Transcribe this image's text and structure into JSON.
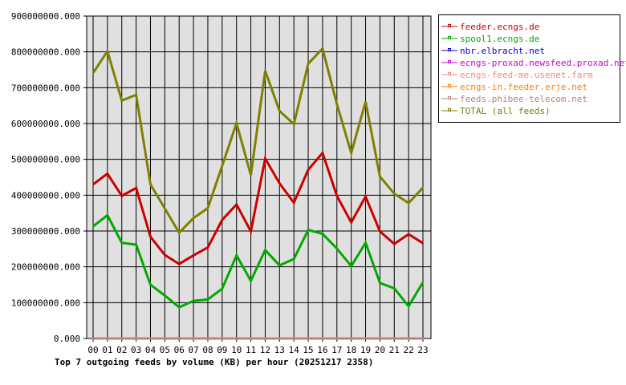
{
  "chart_data": {
    "type": "line",
    "title": "Top 7 outgoing feeds by volume (KB) per hour (20251217 2358)",
    "categories": [
      "00",
      "01",
      "02",
      "03",
      "04",
      "05",
      "06",
      "07",
      "08",
      "09",
      "10",
      "11",
      "12",
      "13",
      "14",
      "15",
      "16",
      "17",
      "18",
      "19",
      "20",
      "21",
      "22",
      "23"
    ],
    "ylim": [
      0,
      900000000
    ],
    "yticks": [
      "0.000",
      "100000000.000",
      "200000000.000",
      "300000000.000",
      "400000000.000",
      "500000000.000",
      "600000000.000",
      "700000000.000",
      "800000000.000",
      "900000000.000"
    ],
    "grid": true,
    "legend_position": "right",
    "series": [
      {
        "name": "feeder.ecngs.de",
        "color": "#cc0000",
        "values": [
          430000000,
          460000000,
          398000000,
          420000000,
          284000000,
          233000000,
          208000000,
          232000000,
          254000000,
          331000000,
          374000000,
          299000000,
          502000000,
          433000000,
          379000000,
          471000000,
          518000000,
          398000000,
          324000000,
          396000000,
          299000000,
          264000000,
          291000000,
          266000000
        ]
      },
      {
        "name": "spool1.ecngs.de",
        "color": "#00aa00",
        "values": [
          313000000,
          344000000,
          267000000,
          262000000,
          150000000,
          120000000,
          87000000,
          105000000,
          109000000,
          139000000,
          232000000,
          161000000,
          247000000,
          204000000,
          222000000,
          303000000,
          292000000,
          251000000,
          202000000,
          267000000,
          155000000,
          140000000,
          90000000,
          157000000
        ]
      },
      {
        "name": "nbr.elbracht.net",
        "color": "#0000cc",
        "values": [
          0,
          0,
          0,
          0,
          0,
          0,
          0,
          0,
          0,
          0,
          0,
          0,
          0,
          0,
          0,
          0,
          0,
          0,
          0,
          0,
          0,
          0,
          0,
          0
        ]
      },
      {
        "name": "ecngs-proxad.newsfeed.proxad.net",
        "color": "#cc00cc",
        "values": [
          0,
          0,
          0,
          0,
          0,
          0,
          0,
          0,
          0,
          0,
          0,
          0,
          0,
          0,
          0,
          0,
          0,
          0,
          0,
          0,
          0,
          0,
          0,
          0
        ]
      },
      {
        "name": "ecngs-feed-me.usenet.farm",
        "color": "#ff8080",
        "values": [
          0,
          0,
          0,
          0,
          0,
          0,
          0,
          0,
          0,
          0,
          0,
          0,
          0,
          0,
          0,
          0,
          0,
          0,
          0,
          0,
          0,
          0,
          0,
          0
        ]
      },
      {
        "name": "ecngs-in.feeder.erje.net",
        "color": "#ff8000",
        "values": [
          0,
          0,
          0,
          0,
          0,
          0,
          0,
          0,
          0,
          0,
          0,
          0,
          0,
          0,
          0,
          0,
          0,
          0,
          0,
          0,
          0,
          0,
          0,
          0
        ]
      },
      {
        "name": "feeds.phibee-telecom.net",
        "color": "#c08080",
        "values": [
          0,
          0,
          0,
          0,
          0,
          0,
          0,
          0,
          0,
          0,
          0,
          0,
          0,
          0,
          0,
          0,
          0,
          0,
          0,
          0,
          0,
          0,
          0,
          0
        ]
      },
      {
        "name": "TOTAL (all feeds)",
        "color": "#808000",
        "values": [
          741000000,
          802000000,
          664000000,
          680000000,
          430000000,
          363000000,
          295000000,
          336000000,
          364000000,
          482000000,
          601000000,
          456000000,
          747000000,
          635000000,
          598000000,
          767000000,
          809000000,
          654000000,
          518000000,
          661000000,
          452000000,
          404000000,
          378000000,
          421000000
        ]
      }
    ]
  }
}
